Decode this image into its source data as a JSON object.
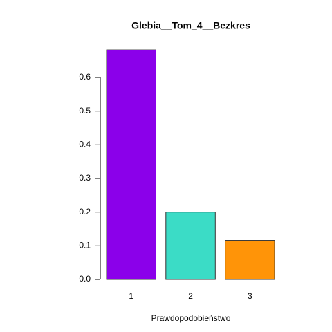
{
  "chart_data": {
    "type": "bar",
    "title": "Glebia__Tom_4__Bezkres",
    "x_label": "Prawdopodobieństwo",
    "categories": [
      "1",
      "2",
      "3"
    ],
    "values": [
      0.682,
      0.2,
      0.116
    ],
    "colors": [
      "#8b00ea",
      "#3bdcc6",
      "#ff9408"
    ],
    "ylim": [
      0,
      0.7
    ],
    "yticks": [
      0.0,
      0.1,
      0.2,
      0.3,
      0.4,
      0.5,
      0.6
    ],
    "ytick_labels": [
      "0.0",
      "0.1",
      "0.2",
      "0.3",
      "0.4",
      "0.5",
      "0.6"
    ]
  }
}
